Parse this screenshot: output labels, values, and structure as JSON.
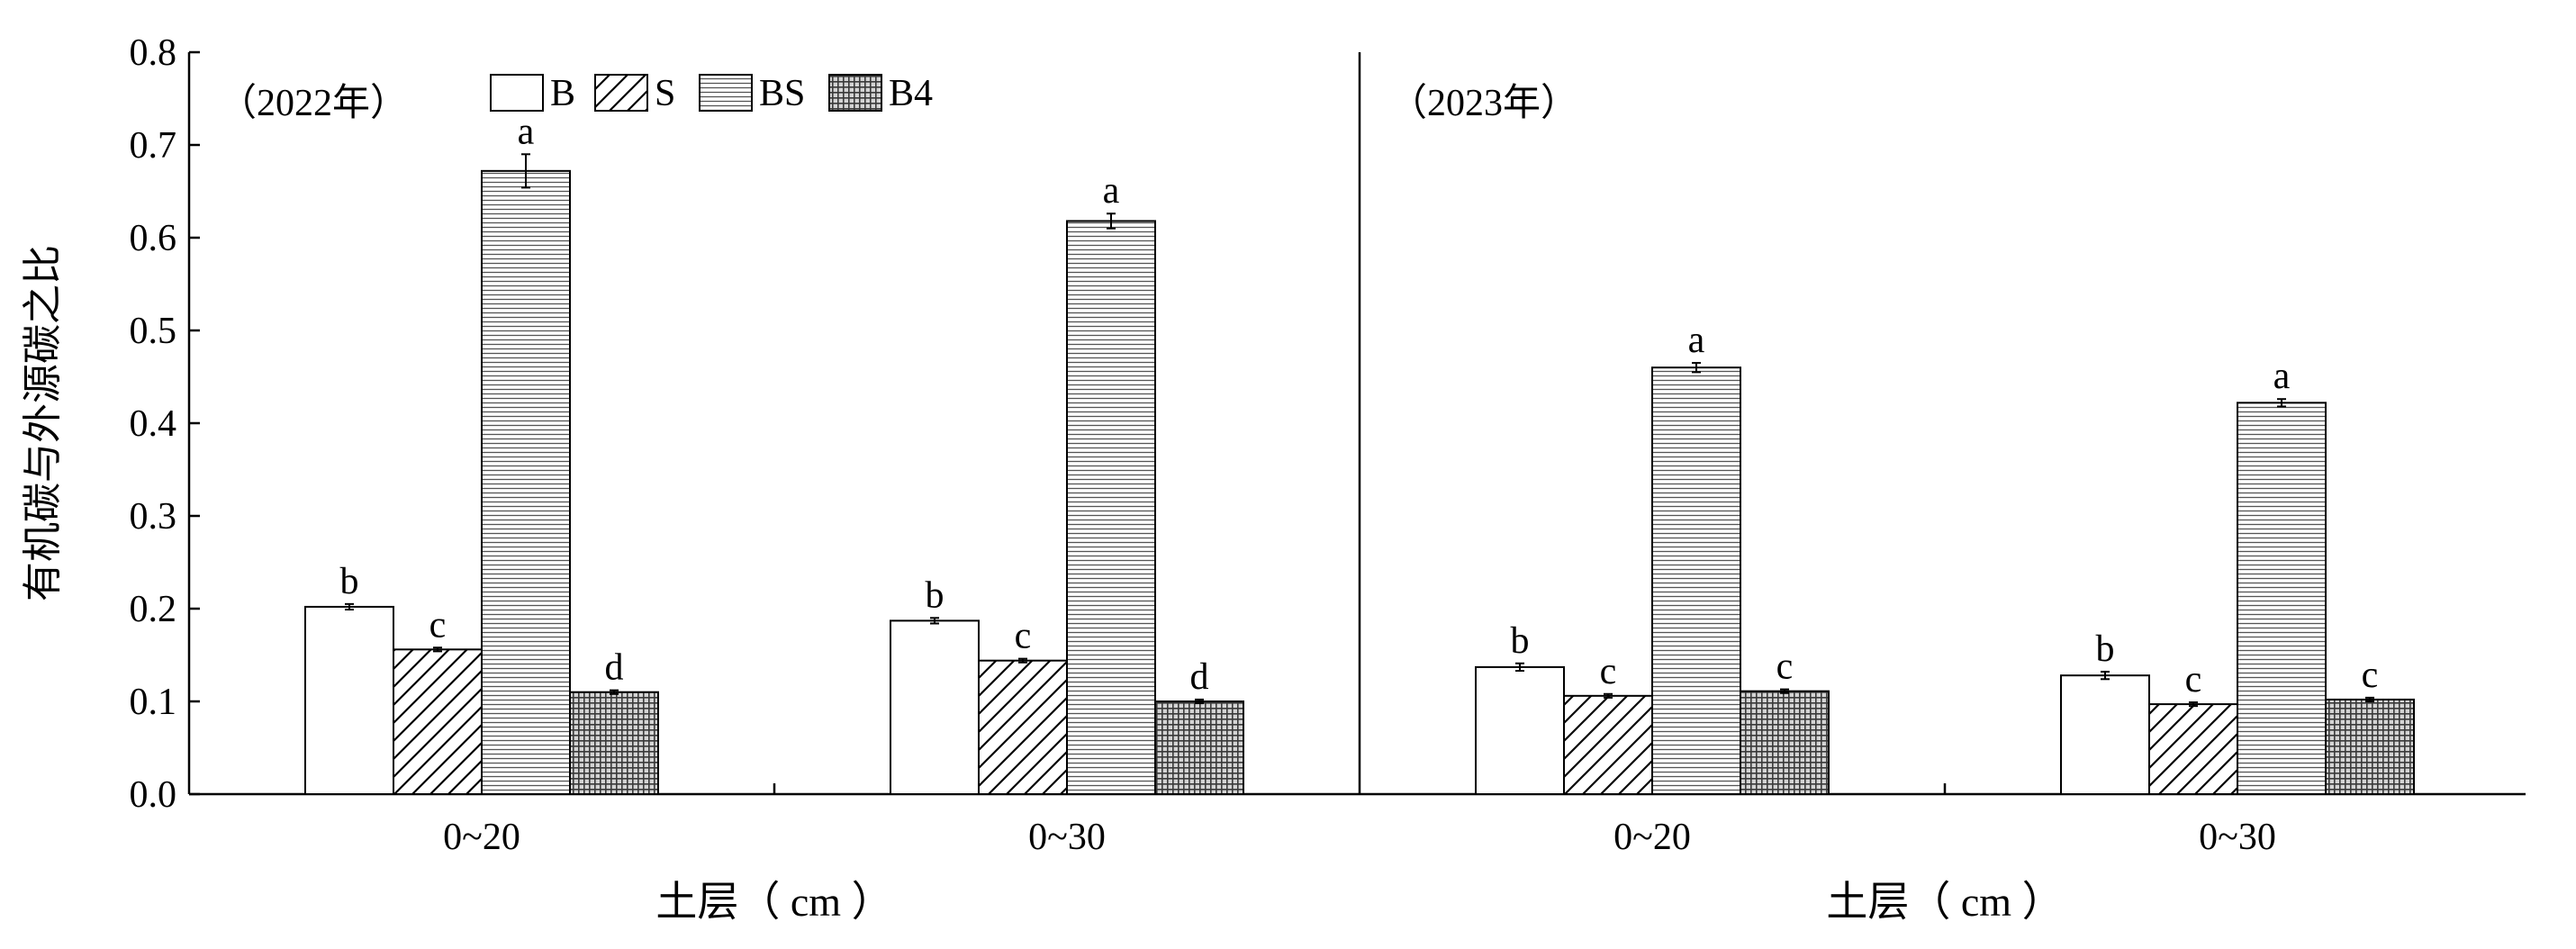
{
  "chart_data": {
    "type": "bar",
    "ylabel": "有机碳与外源碳之比",
    "ylim": [
      0,
      0.8
    ],
    "yticks": [
      "0.0",
      "0.1",
      "0.2",
      "0.3",
      "0.4",
      "0.5",
      "0.6",
      "0.7",
      "0.8"
    ],
    "legend": {
      "position": "top-left",
      "entries": [
        {
          "name": "B",
          "pattern": "white"
        },
        {
          "name": "S",
          "pattern": "diagonal"
        },
        {
          "name": "BS",
          "pattern": "horizontal"
        },
        {
          "name": "B4",
          "pattern": "grid"
        }
      ]
    },
    "panels": [
      {
        "title": "（2022年）",
        "xlabel": "土层（ cm ）",
        "categories": [
          "0~20",
          "0~30"
        ],
        "series": [
          {
            "name": "B",
            "values": [
              0.202,
              0.187
            ],
            "errors": [
              0.003,
              0.003
            ],
            "letters": [
              "b",
              "b"
            ]
          },
          {
            "name": "S",
            "values": [
              0.156,
              0.144
            ],
            "errors": [
              0.002,
              0.002
            ],
            "letters": [
              "c",
              "c"
            ]
          },
          {
            "name": "BS",
            "values": [
              0.672,
              0.618
            ],
            "errors": [
              0.018,
              0.008
            ],
            "letters": [
              "a",
              "a"
            ]
          },
          {
            "name": "B4",
            "values": [
              0.11,
              0.1
            ],
            "errors": [
              0.002,
              0.002
            ],
            "letters": [
              "d",
              "d"
            ]
          }
        ]
      },
      {
        "title": "（2023年）",
        "xlabel": "土层（ cm ）",
        "categories": [
          "0~20",
          "0~30"
        ],
        "series": [
          {
            "name": "B",
            "values": [
              0.137,
              0.128
            ],
            "errors": [
              0.004,
              0.004
            ],
            "letters": [
              "b",
              "b"
            ]
          },
          {
            "name": "S",
            "values": [
              0.106,
              0.097
            ],
            "errors": [
              0.002,
              0.002
            ],
            "letters": [
              "c",
              "c"
            ]
          },
          {
            "name": "BS",
            "values": [
              0.46,
              0.422
            ],
            "errors": [
              0.005,
              0.004
            ],
            "letters": [
              "a",
              "a"
            ]
          },
          {
            "name": "B4",
            "values": [
              0.111,
              0.102
            ],
            "errors": [
              0.002,
              0.002
            ],
            "letters": [
              "c",
              "c"
            ]
          }
        ]
      }
    ]
  }
}
